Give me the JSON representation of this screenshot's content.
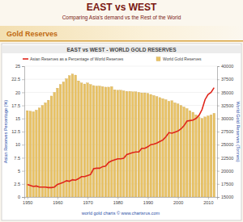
{
  "header": {
    "title": "EAST vs WEST",
    "subtitle": "Comparing Asia's demand vs the Rest of the World",
    "section": "Gold Reserves"
  },
  "chart_data": {
    "type": "bar",
    "title": "EAST vs WEST - WORLD GOLD RESERVES",
    "y_label": "Asian Reserves Percentage (%)",
    "y2_label": "World Gold Reserves (Tonnes)",
    "annotations": [
      "world gold charts © www.chartsrus.com"
    ],
    "x": [
      1950,
      1951,
      1952,
      1953,
      1954,
      1955,
      1956,
      1957,
      1958,
      1959,
      1960,
      1961,
      1962,
      1963,
      1964,
      1965,
      1966,
      1967,
      1968,
      1969,
      1970,
      1971,
      1972,
      1973,
      1974,
      1975,
      1976,
      1977,
      1978,
      1979,
      1980,
      1981,
      1982,
      1983,
      1984,
      1985,
      1986,
      1987,
      1988,
      1989,
      1990,
      1991,
      1992,
      1993,
      1994,
      1995,
      1996,
      1997,
      1998,
      1999,
      2000,
      2001,
      2002,
      2003,
      2004,
      2005,
      2006,
      2007,
      2008,
      2009,
      2010,
      2011,
      2012
    ],
    "xlim": [
      1949,
      2013
    ],
    "xticks": [
      1950,
      1960,
      1970,
      1980,
      1990,
      2000,
      2010
    ],
    "ylim": [
      0,
      25
    ],
    "yticks": [
      0,
      2.5,
      5,
      7.5,
      10,
      12.5,
      15,
      17.5,
      20,
      22.5,
      25
    ],
    "y2lim": [
      15000,
      40000
    ],
    "y2ticks": [
      15000,
      17500,
      20000,
      22500,
      25000,
      27500,
      30000,
      32500,
      35000,
      37500,
      40000
    ],
    "grid": true,
    "legend": "top",
    "series": [
      {
        "name": "Asian Reserves as a Percentage of World Reserves",
        "type": "line",
        "color": "#e0261c",
        "values": [
          2.4,
          2.2,
          2.0,
          2.1,
          1.9,
          1.9,
          1.9,
          1.8,
          1.8,
          1.9,
          2.4,
          2.6,
          2.8,
          3.1,
          3.0,
          3.3,
          3.2,
          3.5,
          3.9,
          3.9,
          4.1,
          4.3,
          5.4,
          5.5,
          5.5,
          5.8,
          5.9,
          6.6,
          6.9,
          7.1,
          7.3,
          7.3,
          7.4,
          8.1,
          8.3,
          8.5,
          8.6,
          8.6,
          9.3,
          9.3,
          9.6,
          10.0,
          10.1,
          10.3,
          10.6,
          10.9,
          11.5,
          12.3,
          12.2,
          12.4,
          12.6,
          13.0,
          13.6,
          14.5,
          14.6,
          14.7,
          15.0,
          15.6,
          16.7,
          18.6,
          19.6,
          20.0,
          20.9
        ]
      },
      {
        "name": "World Gold Reserves",
        "type": "bar",
        "axis": "y2",
        "color": "#e8c265",
        "values": [
          31500,
          31400,
          31300,
          31600,
          32000,
          32500,
          33000,
          33500,
          34300,
          35000,
          35800,
          36500,
          37000,
          37600,
          38200,
          38500,
          38300,
          37200,
          36800,
          36600,
          36800,
          36500,
          36300,
          36200,
          36200,
          36100,
          36000,
          36000,
          36100,
          35500,
          35400,
          35400,
          35300,
          35200,
          35200,
          35100,
          35100,
          35000,
          34900,
          34900,
          34800,
          34600,
          34400,
          34200,
          34000,
          33800,
          33600,
          33300,
          33400,
          33000,
          32800,
          32500,
          32200,
          31900,
          31500,
          31200,
          30700,
          30300,
          30000,
          30300,
          30500,
          30700,
          31000
        ]
      }
    ]
  }
}
